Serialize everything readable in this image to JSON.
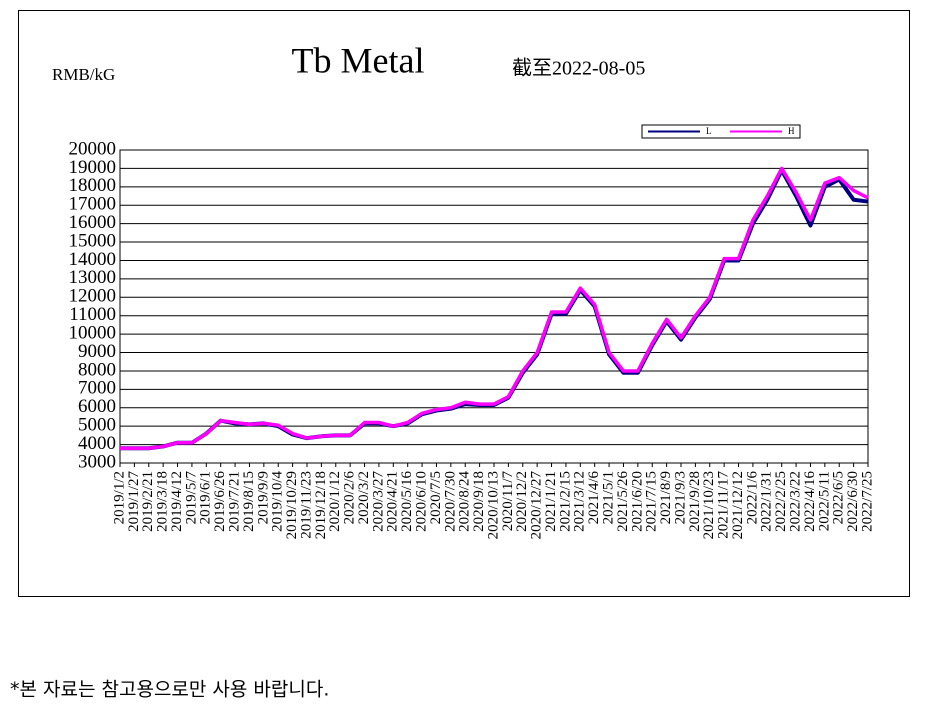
{
  "chart_data": {
    "type": "line",
    "title": "Tb Metal",
    "subtitle": "截至2022-08-05",
    "y_label": "RMB/kG",
    "categories": [
      "2019/1/2",
      "2019/1/27",
      "2019/2/21",
      "2019/3/18",
      "2019/4/12",
      "2019/5/7",
      "2019/6/1",
      "2019/6/26",
      "2019/7/21",
      "2019/8/15",
      "2019/9/9",
      "2019/10/4",
      "2019/10/29",
      "2019/11/23",
      "2019/12/18",
      "2020/1/12",
      "2020/2/6",
      "2020/3/2",
      "2020/3/27",
      "2020/4/21",
      "2020/5/16",
      "2020/6/10",
      "2020/7/5",
      "2020/7/30",
      "2020/8/24",
      "2020/9/18",
      "2020/10/13",
      "2020/11/7",
      "2020/12/2",
      "2020/12/27",
      "2021/1/21",
      "2021/2/15",
      "2021/3/12",
      "2021/4/6",
      "2021/5/1",
      "2021/5/26",
      "2021/6/20",
      "2021/7/15",
      "2021/8/9",
      "2021/9/3",
      "2021/9/28",
      "2021/10/23",
      "2021/11/17",
      "2021/12/12",
      "2022/1/6",
      "2022/1/31",
      "2022/2/25",
      "2022/3/22",
      "2022/4/16",
      "2022/5/11",
      "2022/6/5",
      "2022/6/30",
      "2022/7/25"
    ],
    "series": [
      {
        "name": "L",
        "color": "#000080",
        "values": [
          3800,
          3800,
          3800,
          3900,
          4100,
          4100,
          4600,
          5300,
          5150,
          5100,
          5150,
          5000,
          4550,
          4350,
          4450,
          4500,
          4500,
          5150,
          5150,
          5000,
          5150,
          5650,
          5850,
          5950,
          6200,
          6150,
          6150,
          6550,
          7900,
          8900,
          11100,
          11100,
          12400,
          11500,
          8900,
          7900,
          7900,
          9400,
          10700,
          9700,
          10900,
          11900,
          14000,
          14000,
          16000,
          17300,
          18900,
          17500,
          15900,
          18000,
          18400,
          17300,
          17200
        ]
      },
      {
        "name": "H",
        "color": "#ff00ff",
        "values": [
          3800,
          3800,
          3800,
          3900,
          4100,
          4100,
          4600,
          5300,
          5200,
          5100,
          5150,
          5050,
          4600,
          4350,
          4450,
          4500,
          4500,
          5200,
          5200,
          5000,
          5200,
          5700,
          5900,
          6000,
          6300,
          6200,
          6200,
          6600,
          8000,
          9000,
          11200,
          11200,
          12500,
          11600,
          9000,
          8000,
          8000,
          9500,
          10800,
          9800,
          11000,
          12000,
          14100,
          14100,
          16200,
          17500,
          19000,
          17700,
          16200,
          18200,
          18500,
          17800,
          17400
        ]
      }
    ],
    "ylim": [
      3000,
      20000
    ],
    "yticks": [
      3000,
      4000,
      5000,
      6000,
      7000,
      8000,
      9000,
      10000,
      11000,
      12000,
      13000,
      14000,
      15000,
      16000,
      17000,
      18000,
      19000,
      20000
    ],
    "grid": true,
    "legend": "upper right"
  },
  "footnote": "*본 자료는 참고용으로만 사용 바랍니다."
}
